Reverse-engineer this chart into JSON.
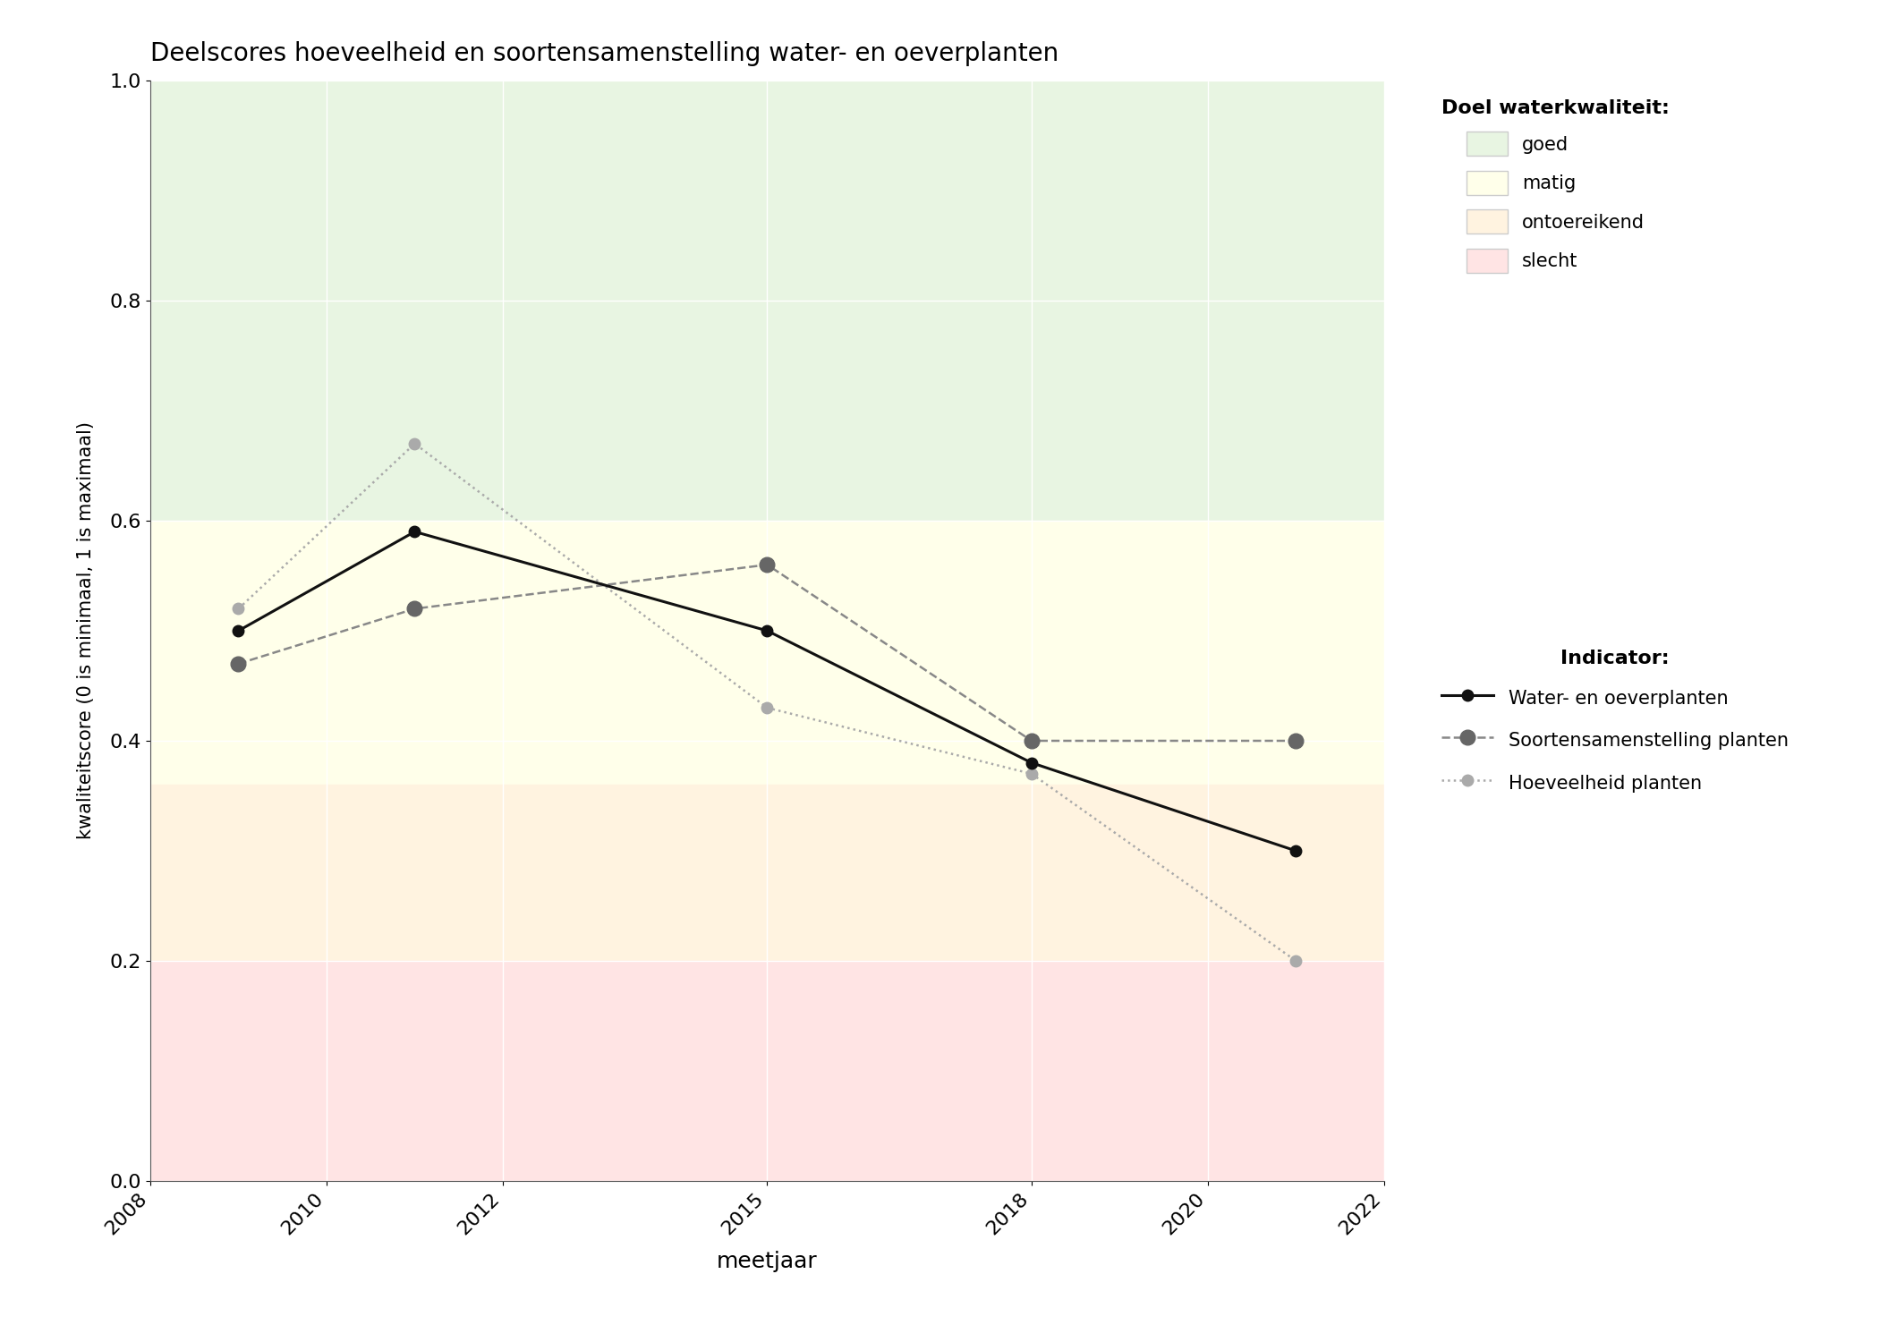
{
  "title": "Deelscores hoeveelheid en soortensamenstelling water- en oeverplanten",
  "xlabel": "meetjaar",
  "ylabel": "kwaliteitscore (0 is minimaal, 1 is maximaal)",
  "xlim": [
    2008,
    2022
  ],
  "ylim": [
    0.0,
    1.0
  ],
  "xticks": [
    2008,
    2010,
    2012,
    2015,
    2018,
    2020,
    2022
  ],
  "yticks": [
    0.0,
    0.2,
    0.4,
    0.6,
    0.8,
    1.0
  ],
  "bg_colors": [
    {
      "name": "goed",
      "ymin": 0.6,
      "ymax": 1.0,
      "color": "#e8f5e2"
    },
    {
      "name": "matig",
      "ymin": 0.36,
      "ymax": 0.6,
      "color": "#ffffea"
    },
    {
      "name": "ontoereikend",
      "ymin": 0.2,
      "ymax": 0.36,
      "color": "#fff3e0"
    },
    {
      "name": "slecht",
      "ymin": 0.0,
      "ymax": 0.2,
      "color": "#ffe4e4"
    }
  ],
  "series": [
    {
      "key": "water_en_oeverplanten",
      "years": [
        2009,
        2011,
        2015,
        2018,
        2021
      ],
      "values": [
        0.5,
        0.59,
        0.5,
        0.38,
        0.3
      ],
      "color": "#111111",
      "linestyle": "-",
      "linewidth": 2.2,
      "marker": "o",
      "markersize": 9,
      "markerfacecolor": "#111111",
      "markeredgecolor": "#111111",
      "label": "Water- en oeverplanten",
      "zorder": 5
    },
    {
      "key": "soortensamenstelling",
      "years": [
        2009,
        2011,
        2015,
        2018,
        2021
      ],
      "values": [
        0.47,
        0.52,
        0.56,
        0.4,
        0.4
      ],
      "color": "#888888",
      "linestyle": "--",
      "linewidth": 1.8,
      "marker": "o",
      "markersize": 12,
      "markerfacecolor": "#666666",
      "markeredgecolor": "#666666",
      "label": "Soortensamenstelling planten",
      "zorder": 4
    },
    {
      "key": "hoeveelheid",
      "years": [
        2009,
        2011,
        2015,
        2018,
        2021
      ],
      "values": [
        0.52,
        0.67,
        0.43,
        0.37,
        0.2
      ],
      "color": "#aaaaaa",
      "linestyle": ":",
      "linewidth": 1.8,
      "marker": "o",
      "markersize": 9,
      "markerfacecolor": "#aaaaaa",
      "markeredgecolor": "#aaaaaa",
      "label": "Hoeveelheid planten",
      "zorder": 3
    }
  ],
  "legend_title_quality": "Doel waterkwaliteit:",
  "legend_quality_labels": [
    "goed",
    "matig",
    "ontoereikend",
    "slecht"
  ],
  "legend_quality_colors": [
    "#e8f5e2",
    "#ffffea",
    "#fff3e0",
    "#ffe4e4"
  ],
  "legend_title_indicator": "Indicator:",
  "background_color": "#ffffff",
  "figure_size": [
    21.0,
    15.0
  ],
  "dpi": 100
}
